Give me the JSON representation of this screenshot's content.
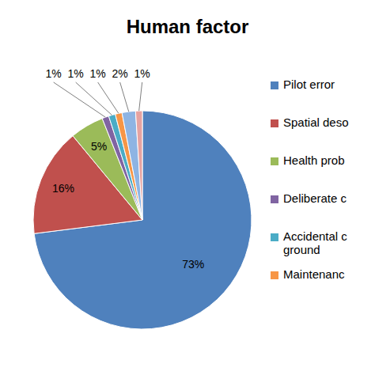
{
  "chart_data": {
    "type": "pie",
    "title": "Human factor",
    "categories": [
      "Pilot error",
      "Spatial deso",
      "Health prob",
      "Deliberate c",
      "Accidental c\nground",
      "Maintenanc",
      null,
      null
    ],
    "values": [
      73,
      16,
      5,
      1,
      1,
      1,
      2,
      1
    ],
    "value_labels": [
      "73%",
      "16%",
      "5%",
      "1%",
      "1%",
      "1%",
      "2%",
      "1%"
    ],
    "colors": [
      "#4f81bd",
      "#c0504d",
      "#9bbb59",
      "#8064a2",
      "#4bacc6",
      "#f79646",
      "#8eb4e3",
      "#e6a3a1"
    ],
    "data_labels": true,
    "legend": "right"
  }
}
